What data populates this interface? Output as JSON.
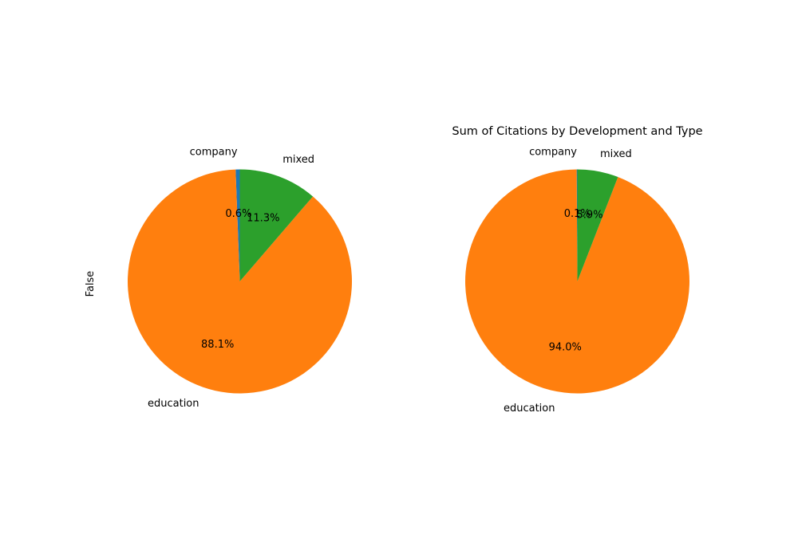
{
  "colors": {
    "company": "#1f77b4",
    "education": "#ff7f0e",
    "mixed": "#2ca02c"
  },
  "chart_data": [
    {
      "type": "pie",
      "title": "",
      "ylabel": "False",
      "start_angle_deg": 90,
      "direction": "counterclockwise",
      "labels": [
        "company",
        "education",
        "mixed"
      ],
      "values": [
        0.6,
        88.1,
        11.3
      ],
      "pct_labels": [
        "0.6%",
        "88.1%",
        "11.3%"
      ]
    },
    {
      "type": "pie",
      "title": "Sum of Citations by Development and Type",
      "ylabel": "",
      "start_angle_deg": 90,
      "direction": "counterclockwise",
      "labels": [
        "company",
        "education",
        "mixed"
      ],
      "values": [
        0.1,
        94.0,
        5.9
      ],
      "pct_labels": [
        "0.1%",
        "94.0%",
        "5.9%"
      ]
    }
  ]
}
